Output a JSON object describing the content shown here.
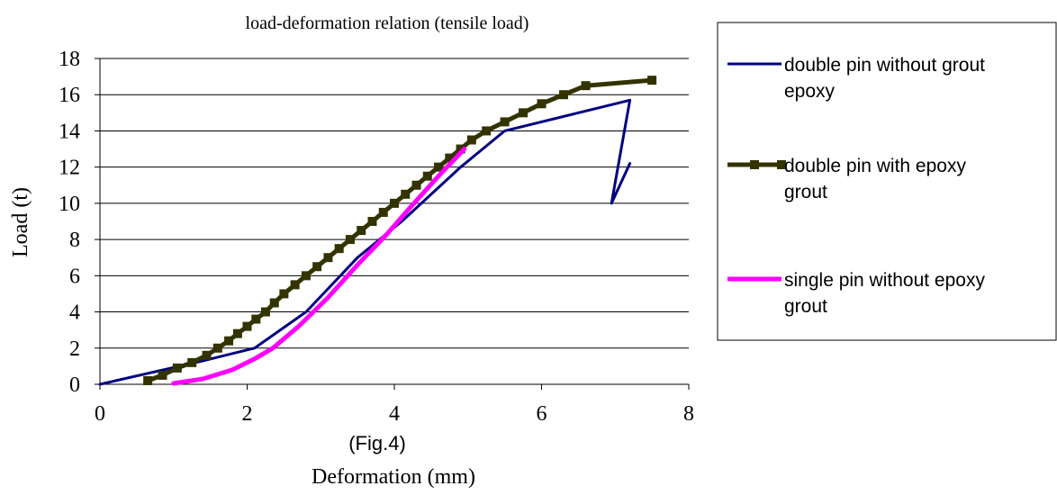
{
  "chart_data": {
    "type": "line",
    "title": "load-deformation relation (tensile load)",
    "xlabel": "Deformation (mm)",
    "ylabel": "Load  (t)",
    "annotation": "(Fig.4)",
    "xlim": [
      0,
      8
    ],
    "ylim": [
      0,
      18
    ],
    "xticks": [
      0,
      2,
      4,
      6,
      8
    ],
    "yticks": [
      0,
      2,
      4,
      6,
      8,
      10,
      12,
      14,
      16,
      18
    ],
    "grid": "horizontal",
    "legend_position": "right",
    "series": [
      {
        "name": "double pin without grout epoxy",
        "color": "#000080",
        "marker": "none",
        "points": [
          [
            0,
            0
          ],
          [
            1.4,
            1.3
          ],
          [
            2.1,
            2.0
          ],
          [
            2.8,
            4.0
          ],
          [
            3.5,
            7.0
          ],
          [
            4.1,
            9.0
          ],
          [
            4.9,
            12.0
          ],
          [
            5.5,
            14.0
          ],
          [
            7.2,
            15.7
          ],
          [
            6.95,
            10.0
          ],
          [
            7.2,
            12.2
          ]
        ]
      },
      {
        "name": "double pin with epoxy grout",
        "color": "#333300",
        "marker": "square",
        "points": [
          [
            0.65,
            0.2
          ],
          [
            0.85,
            0.5
          ],
          [
            1.05,
            0.9
          ],
          [
            1.25,
            1.2
          ],
          [
            1.45,
            1.6
          ],
          [
            1.6,
            2.0
          ],
          [
            1.75,
            2.4
          ],
          [
            1.87,
            2.8
          ],
          [
            2.0,
            3.2
          ],
          [
            2.12,
            3.6
          ],
          [
            2.25,
            4.0
          ],
          [
            2.37,
            4.5
          ],
          [
            2.5,
            5.0
          ],
          [
            2.65,
            5.5
          ],
          [
            2.8,
            6.0
          ],
          [
            2.95,
            6.5
          ],
          [
            3.1,
            7.0
          ],
          [
            3.25,
            7.5
          ],
          [
            3.4,
            8.0
          ],
          [
            3.55,
            8.5
          ],
          [
            3.7,
            9.0
          ],
          [
            3.85,
            9.5
          ],
          [
            4.0,
            10.0
          ],
          [
            4.15,
            10.5
          ],
          [
            4.3,
            11.0
          ],
          [
            4.45,
            11.5
          ],
          [
            4.6,
            12.0
          ],
          [
            4.75,
            12.5
          ],
          [
            4.9,
            13.0
          ],
          [
            5.05,
            13.5
          ],
          [
            5.25,
            14.0
          ],
          [
            5.5,
            14.5
          ],
          [
            5.75,
            15.0
          ],
          [
            6.0,
            15.5
          ],
          [
            6.3,
            16.0
          ],
          [
            6.6,
            16.5
          ],
          [
            7.5,
            16.8
          ]
        ]
      },
      {
        "name": "single pin without epoxy grout",
        "color": "#ff00ff",
        "marker": "none",
        "points": [
          [
            1.0,
            0.05
          ],
          [
            1.4,
            0.3
          ],
          [
            1.8,
            0.8
          ],
          [
            2.1,
            1.4
          ],
          [
            2.35,
            2.0
          ],
          [
            2.7,
            3.2
          ],
          [
            3.1,
            4.8
          ],
          [
            3.5,
            6.6
          ],
          [
            3.9,
            8.3
          ],
          [
            4.2,
            9.7
          ],
          [
            4.6,
            11.5
          ],
          [
            4.95,
            13.0
          ]
        ]
      }
    ]
  }
}
